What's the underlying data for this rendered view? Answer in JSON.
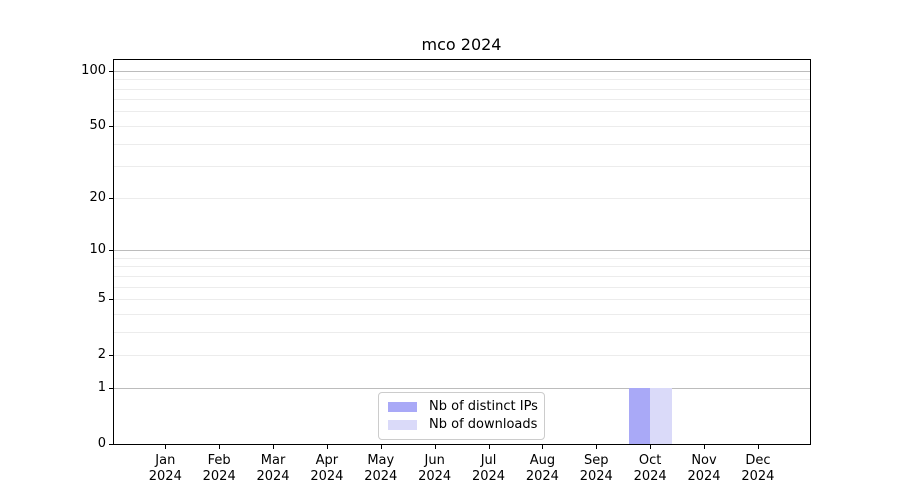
{
  "chart_data": {
    "type": "bar",
    "title": "mco 2024",
    "xlabel": "",
    "ylabel": "",
    "categories": [
      {
        "month": "Jan",
        "year": "2024"
      },
      {
        "month": "Feb",
        "year": "2024"
      },
      {
        "month": "Mar",
        "year": "2024"
      },
      {
        "month": "Apr",
        "year": "2024"
      },
      {
        "month": "May",
        "year": "2024"
      },
      {
        "month": "Jun",
        "year": "2024"
      },
      {
        "month": "Jul",
        "year": "2024"
      },
      {
        "month": "Aug",
        "year": "2024"
      },
      {
        "month": "Sep",
        "year": "2024"
      },
      {
        "month": "Oct",
        "year": "2024"
      },
      {
        "month": "Nov",
        "year": "2024"
      },
      {
        "month": "Dec",
        "year": "2024"
      }
    ],
    "series": [
      {
        "name": "Nb of distinct IPs",
        "color": "#a9a9f7",
        "values": [
          0,
          0,
          0,
          0,
          0,
          0,
          0,
          0,
          0,
          1,
          0,
          0
        ]
      },
      {
        "name": "Nb of downloads",
        "color": "#dadaf9",
        "values": [
          0,
          0,
          0,
          0,
          0,
          0,
          0,
          0,
          0,
          1,
          0,
          0
        ]
      }
    ],
    "yscale": "log1p",
    "ylim": [
      0,
      116
    ],
    "ytick_values": [
      0,
      1,
      2,
      5,
      10,
      20,
      50,
      100
    ],
    "grid": {
      "major_at": [
        1,
        10,
        100
      ],
      "minor_at": [
        2,
        3,
        4,
        5,
        6,
        7,
        8,
        9,
        20,
        30,
        40,
        50,
        60,
        70,
        80,
        90
      ],
      "major_color": "#bcbcbc",
      "minor_color": "#ececec"
    },
    "legend_position": "lower center"
  },
  "colors": {
    "background": "#ffffff",
    "axis": "#000000",
    "bar_distinct_ips": "#a9a9f7",
    "bar_downloads": "#dadaf9",
    "legend_border": "#cccccc"
  }
}
